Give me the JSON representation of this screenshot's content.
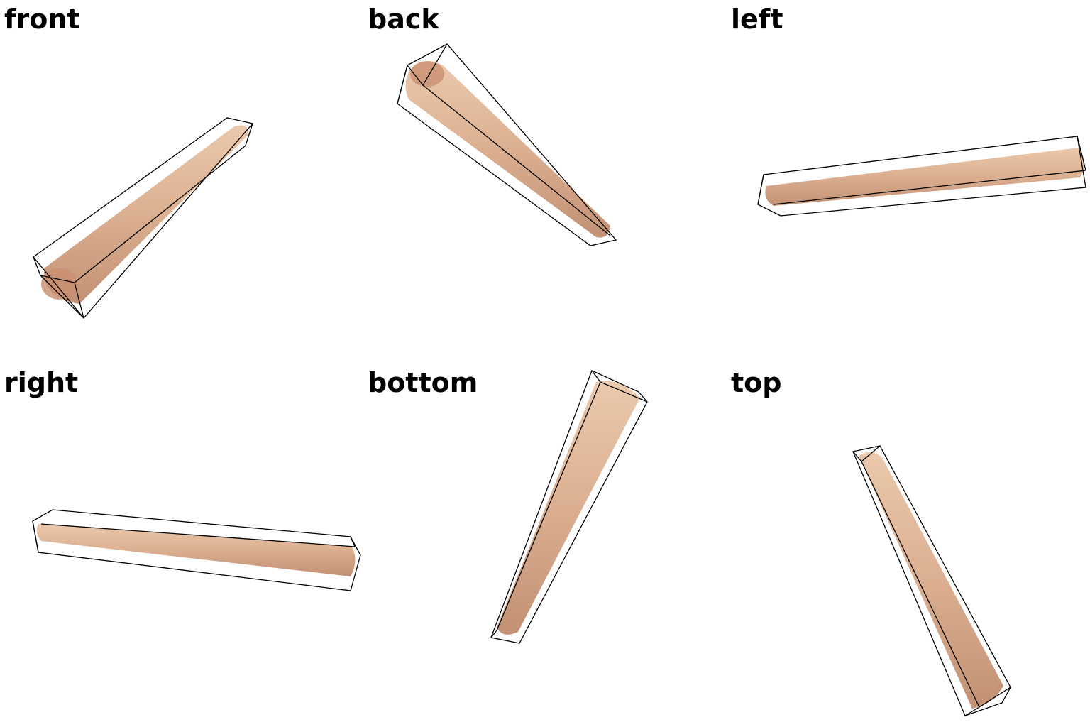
{
  "views": [
    {
      "id": "front",
      "label": "front"
    },
    {
      "id": "back",
      "label": "back"
    },
    {
      "id": "left",
      "label": "left"
    },
    {
      "id": "right",
      "label": "right"
    },
    {
      "id": "bottom",
      "label": "bottom"
    },
    {
      "id": "top",
      "label": "top"
    }
  ],
  "colors": {
    "background": "#ffffff",
    "object_light": "#e8c3a3",
    "object_mid": "#d6a585",
    "object_dark": "#b98466",
    "bounding_box": "#000000",
    "label_text": "#000000"
  },
  "icons": {
    "object": "elongated-tapered-rod",
    "overlay": "bounding-box-wireframe"
  }
}
